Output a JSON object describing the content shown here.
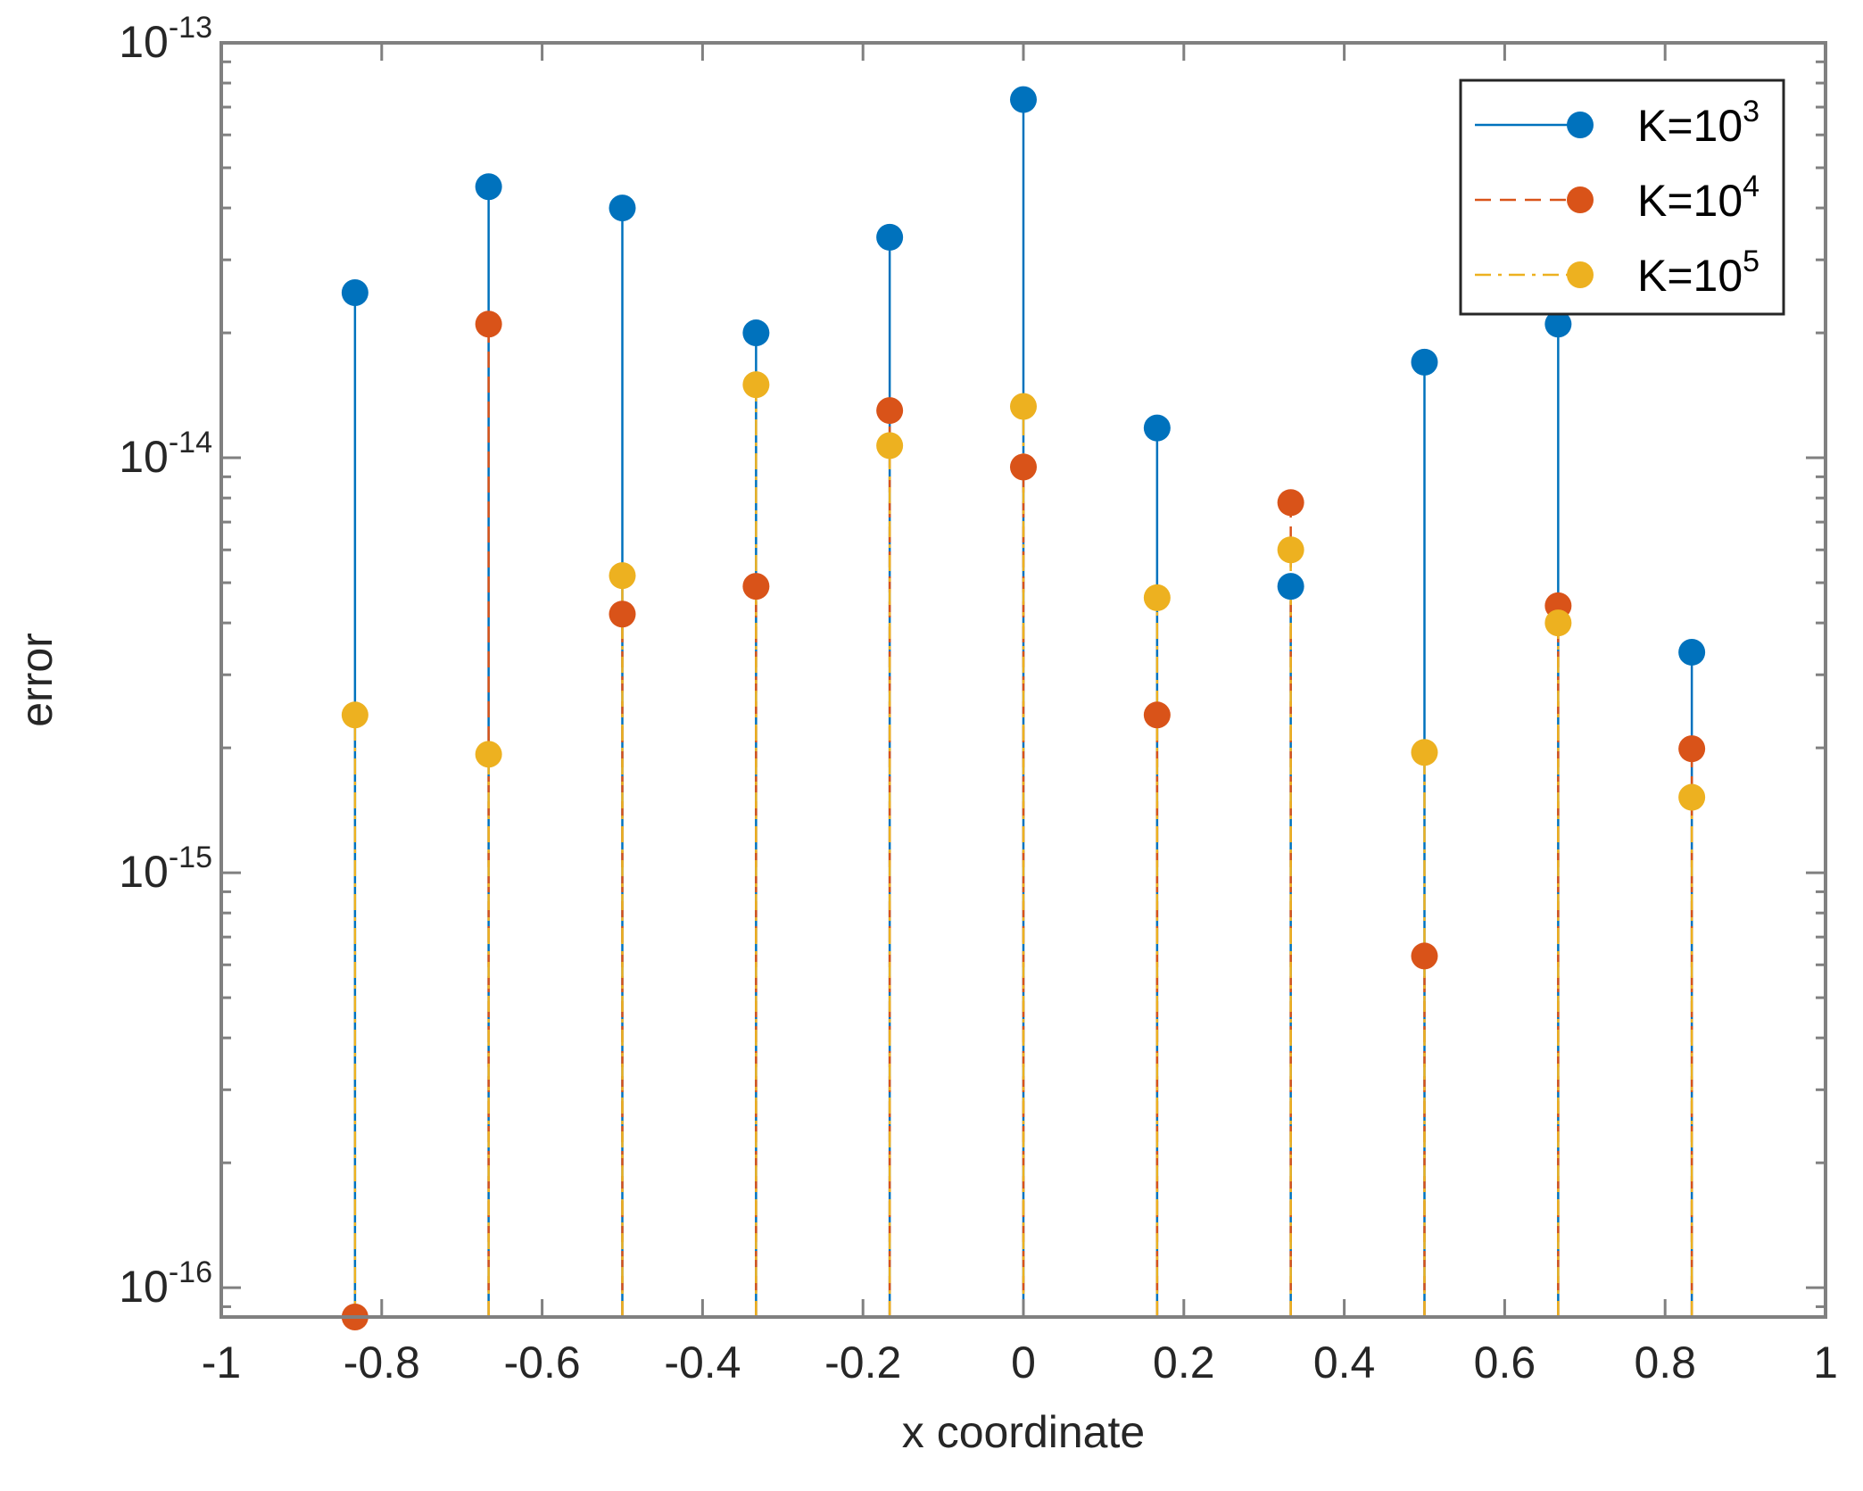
{
  "chart_data": {
    "type": "stem",
    "xlabel": "x coordinate",
    "ylabel": "error",
    "xlim": [
      -1,
      1
    ],
    "ylim": [
      8.5e-17,
      1e-13
    ],
    "yscale": "log",
    "x_ticks": [
      {
        "value": -1,
        "label": "-1"
      },
      {
        "value": -0.8,
        "label": "-0.8"
      },
      {
        "value": -0.6,
        "label": "-0.6"
      },
      {
        "value": -0.4,
        "label": "-0.4"
      },
      {
        "value": -0.2,
        "label": "-0.2"
      },
      {
        "value": 0,
        "label": "0"
      },
      {
        "value": 0.2,
        "label": "0.2"
      },
      {
        "value": 0.4,
        "label": "0.4"
      },
      {
        "value": 0.6,
        "label": "0.6"
      },
      {
        "value": 0.8,
        "label": "0.8"
      },
      {
        "value": 1,
        "label": "1"
      }
    ],
    "y_ticks": [
      {
        "value": 1e-16,
        "base": "10",
        "exp": "-16"
      },
      {
        "value": 1e-15,
        "base": "10",
        "exp": "-15"
      },
      {
        "value": 1e-14,
        "base": "10",
        "exp": "-14"
      },
      {
        "value": 1e-13,
        "base": "10",
        "exp": "-13"
      }
    ],
    "x": [
      -0.8333,
      -0.6667,
      -0.5,
      -0.3333,
      -0.1667,
      0,
      0.1667,
      0.3333,
      0.5,
      0.6667,
      0.8333
    ],
    "legend_position": "top-right",
    "series": [
      {
        "name": "K=10^3",
        "label_base": "K=10",
        "label_exp": "3",
        "color": "#0072BD",
        "line_style": "solid",
        "values": [
          2.5e-14,
          4.5e-14,
          4e-14,
          2e-14,
          3.4e-14,
          7.3e-14,
          1.18e-14,
          4.9e-15,
          1.7e-14,
          2.1e-14,
          3.4e-15
        ]
      },
      {
        "name": "K=10^4",
        "label_base": "K=10",
        "label_exp": "4",
        "color": "#D95319",
        "line_style": "dashed",
        "values": [
          8.5e-17,
          2.1e-14,
          4.2e-15,
          4.9e-15,
          1.3e-14,
          9.5e-15,
          2.4e-15,
          7.8e-15,
          6.3e-16,
          4.4e-15,
          1.99e-15
        ]
      },
      {
        "name": "K=10^5",
        "label_base": "K=10",
        "label_exp": "5",
        "color": "#EDB120",
        "line_style": "dashdot",
        "values": [
          2.4e-15,
          1.93e-15,
          5.2e-15,
          1.5e-14,
          1.07e-14,
          1.33e-14,
          4.6e-15,
          6e-15,
          1.95e-15,
          4e-15,
          1.52e-15
        ]
      }
    ]
  }
}
